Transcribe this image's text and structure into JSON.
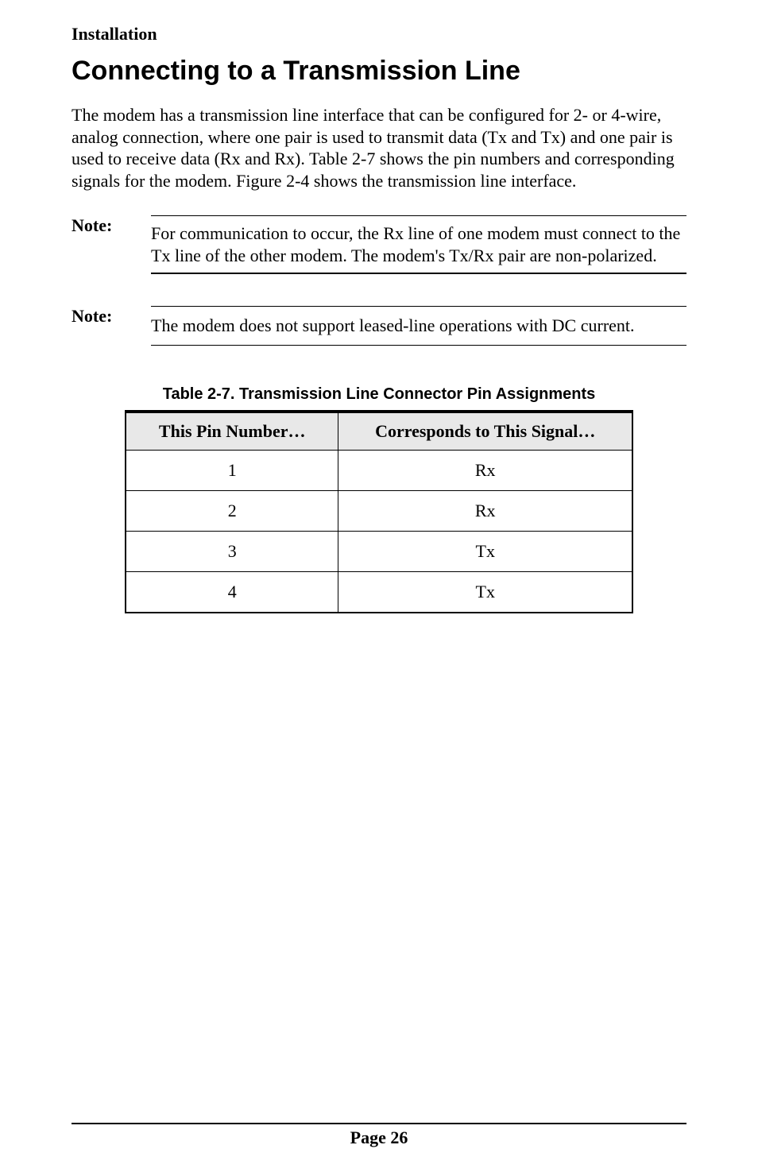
{
  "section_label": "Installation",
  "heading": "Connecting to a Transmission Line",
  "intro": "The modem has a transmission line interface that can be configured for 2- or 4-wire, analog connection, where one pair is used to transmit data (Tx and Tx) and one pair is used to receive data (Rx and Rx). Table 2-7 shows the pin numbers and corresponding signals for the modem. Figure 2-4 shows the transmission line interface.",
  "note1": {
    "label": "Note:",
    "text": "For communication to occur, the Rx line of one modem must connect to the Tx line of the other modem. The modem's Tx/Rx pair are non-polarized."
  },
  "note2": {
    "label": "Note:",
    "text": "The modem does not support leased-line operations with DC current."
  },
  "table": {
    "caption": "Table 2-7. Transmission Line Connector Pin Assignments",
    "headers": {
      "pin": "This Pin Number…",
      "signal": "Corresponds to This Signal…"
    },
    "rows": [
      {
        "pin": "1",
        "signal": "Rx"
      },
      {
        "pin": "2",
        "signal": "Rx"
      },
      {
        "pin": "3",
        "signal": "Tx"
      },
      {
        "pin": "4",
        "signal": "Tx"
      }
    ]
  },
  "footer": "Page 26"
}
